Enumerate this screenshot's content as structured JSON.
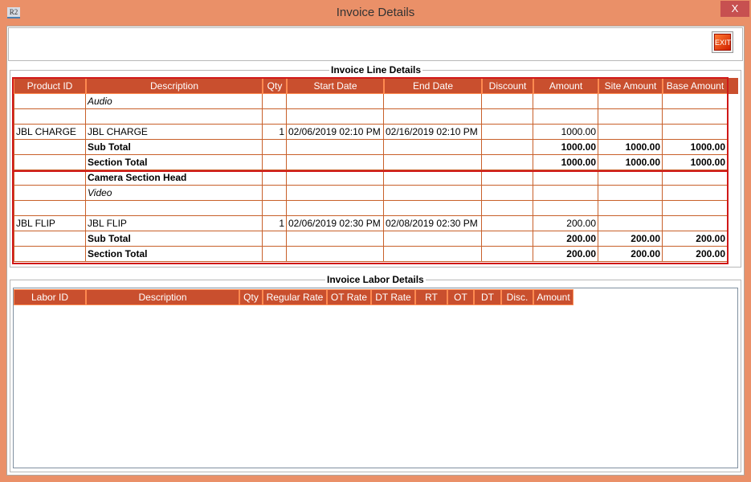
{
  "window": {
    "title": "Invoice Details",
    "close_label": "X",
    "app_icon": "R2"
  },
  "toolbar": {
    "exit_label": "EXIT"
  },
  "line_details": {
    "title": "Invoice Line Details",
    "columns": [
      "Product ID",
      "Description",
      "Qty",
      "Start Date",
      "End Date",
      "Discount",
      "Amount",
      "Site Amount",
      "Base Amount"
    ],
    "rows": [
      {
        "desc": "Audio",
        "style": "italic"
      },
      {},
      {
        "product_id": "JBL CHARGE",
        "desc": "JBL CHARGE",
        "qty": "1",
        "start": "02/06/2019 02:10 PM",
        "end": "02/16/2019 02:10 PM",
        "amount": "1000.00"
      },
      {
        "desc": "Sub Total",
        "style": "bold",
        "amount": "1000.00",
        "site": "1000.00",
        "base": "1000.00"
      },
      {
        "desc": "Section Total",
        "style": "bold",
        "amount": "1000.00",
        "site": "1000.00",
        "base": "1000.00"
      },
      {
        "desc": "Camera Section Head",
        "style": "bold"
      },
      {
        "desc": "Video",
        "style": "italic"
      },
      {},
      {
        "product_id": "JBL FLIP",
        "desc": "JBL FLIP",
        "qty": "1",
        "start": "02/06/2019 02:30 PM",
        "end": "02/08/2019 02:30 PM",
        "amount": "200.00"
      },
      {
        "desc": "Sub Total",
        "style": "bold",
        "amount": "200.00",
        "site": "200.00",
        "base": "200.00"
      },
      {
        "desc": "Section Total",
        "style": "bold",
        "amount": "200.00",
        "site": "200.00",
        "base": "200.00"
      }
    ]
  },
  "labor_details": {
    "title": "Invoice Labor Details",
    "columns": [
      "Labor ID",
      "Description",
      "Qty",
      "Regular Rate",
      "OT Rate",
      "DT Rate",
      "RT",
      "OT",
      "DT",
      "Disc.",
      "Amount"
    ],
    "rows": []
  },
  "colors": {
    "header": "#c94f2e",
    "frame": "#ea9068",
    "section_outline": "#d01818"
  }
}
